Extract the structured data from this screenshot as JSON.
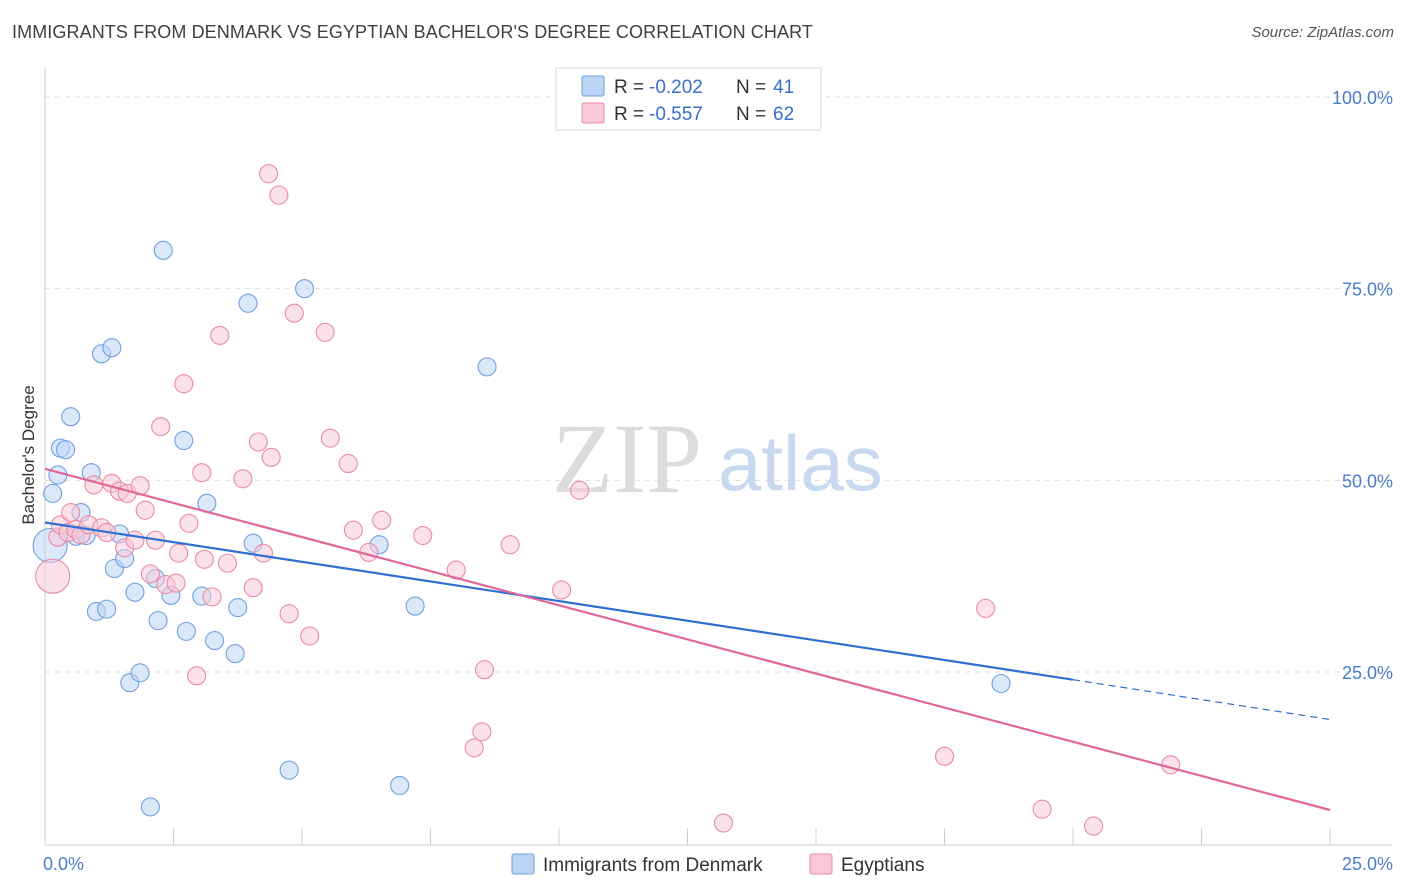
{
  "header": {
    "title": "IMMIGRANTS FROM DENMARK VS EGYPTIAN BACHELOR'S DEGREE CORRELATION CHART",
    "source": "Source: ZipAtlas.com"
  },
  "watermark": {
    "part1": "ZIP",
    "part2": "atlas"
  },
  "legend": {
    "r_label": "R =",
    "n_label": "N =",
    "entries": [
      {
        "r": "-0.202",
        "n": "41",
        "color": "#a9c8f0"
      },
      {
        "r": "-0.557",
        "n": "62",
        "color": "#f4b8cb"
      }
    ]
  },
  "chart_data": {
    "type": "scatter",
    "title": "IMMIGRANTS FROM DENMARK VS EGYPTIAN BACHELOR'S DEGREE CORRELATION CHART",
    "xlabel": "",
    "ylabel": "Bachelor's Degree",
    "xlim": [
      0,
      25
    ],
    "ylim": [
      0,
      100
    ],
    "x_tick_labels": [
      "0.0%",
      "25.0%"
    ],
    "y_tick_labels": [
      "25.0%",
      "50.0%",
      "75.0%",
      "100.0%"
    ],
    "y_ticks": [
      25,
      50,
      75,
      100
    ],
    "grid": true,
    "legend_position": "top-center",
    "series": [
      {
        "name": "Immigrants from Denmark",
        "color": "#6fa0e0",
        "fill": "#bcd5f5",
        "trend_color": "#2f6fd0",
        "trend": {
          "x_start": 0,
          "y_start": 44.5,
          "x_solid_end": 20,
          "y_solid_end": 24,
          "x_end": 25,
          "y_end": 18.8
        },
        "points": [
          [
            0.1,
            41.5
          ],
          [
            0.15,
            48.3
          ],
          [
            0.25,
            50.7
          ],
          [
            0.3,
            54.2
          ],
          [
            0.4,
            54
          ],
          [
            0.5,
            58.3
          ],
          [
            0.6,
            42.7
          ],
          [
            0.7,
            45.8
          ],
          [
            0.8,
            42.8
          ],
          [
            0.9,
            51
          ],
          [
            1.0,
            32.9
          ],
          [
            1.1,
            66.5
          ],
          [
            1.2,
            33.2
          ],
          [
            1.3,
            67.3
          ],
          [
            1.35,
            38.5
          ],
          [
            1.45,
            43
          ],
          [
            1.55,
            39.8
          ],
          [
            1.65,
            23.6
          ],
          [
            1.75,
            35.4
          ],
          [
            1.85,
            24.9
          ],
          [
            2.05,
            7.4
          ],
          [
            2.15,
            37.2
          ],
          [
            2.2,
            31.7
          ],
          [
            2.3,
            80
          ],
          [
            2.45,
            35
          ],
          [
            2.7,
            55.2
          ],
          [
            2.75,
            30.3
          ],
          [
            3.05,
            34.9
          ],
          [
            3.15,
            47
          ],
          [
            3.3,
            29.1
          ],
          [
            3.7,
            27.4
          ],
          [
            3.75,
            33.4
          ],
          [
            3.95,
            73.1
          ],
          [
            4.05,
            41.8
          ],
          [
            4.75,
            12.2
          ],
          [
            5.05,
            75
          ],
          [
            6.5,
            41.6
          ],
          [
            6.9,
            10.2
          ],
          [
            7.2,
            33.6
          ],
          [
            8.6,
            64.8
          ],
          [
            18.6,
            23.5
          ]
        ]
      },
      {
        "name": "Egyptians",
        "color": "#ea8aa8",
        "fill": "#f8c9d7",
        "trend_color": "#e0679a",
        "trend": {
          "x_start": 0,
          "y_start": 51.5,
          "x_end": 25,
          "y_end": 7
        },
        "points": [
          [
            0.15,
            37.5
          ],
          [
            0.25,
            42.6
          ],
          [
            0.3,
            44.2
          ],
          [
            0.45,
            43.2
          ],
          [
            0.5,
            45.8
          ],
          [
            0.6,
            43.6
          ],
          [
            0.7,
            42.9
          ],
          [
            0.85,
            44.2
          ],
          [
            0.95,
            49.4
          ],
          [
            1.1,
            43.8
          ],
          [
            1.2,
            43.2
          ],
          [
            1.3,
            49.6
          ],
          [
            1.45,
            48.6
          ],
          [
            1.55,
            41.2
          ],
          [
            1.6,
            48.3
          ],
          [
            1.75,
            42.2
          ],
          [
            1.85,
            49.3
          ],
          [
            1.95,
            46.1
          ],
          [
            2.05,
            37.8
          ],
          [
            2.15,
            42.2
          ],
          [
            2.25,
            57
          ],
          [
            2.35,
            36.4
          ],
          [
            2.55,
            36.6
          ],
          [
            2.6,
            40.5
          ],
          [
            2.7,
            62.6
          ],
          [
            2.8,
            44.4
          ],
          [
            2.95,
            24.5
          ],
          [
            3.05,
            51
          ],
          [
            3.1,
            39.7
          ],
          [
            3.25,
            34.8
          ],
          [
            3.4,
            68.9
          ],
          [
            3.55,
            39.2
          ],
          [
            3.85,
            50.2
          ],
          [
            4.05,
            36
          ],
          [
            4.15,
            55
          ],
          [
            4.25,
            40.5
          ],
          [
            4.35,
            90
          ],
          [
            4.4,
            53
          ],
          [
            4.55,
            87.2
          ],
          [
            4.75,
            32.6
          ],
          [
            4.85,
            71.8
          ],
          [
            5.15,
            29.7
          ],
          [
            5.45,
            69.3
          ],
          [
            5.55,
            55.5
          ],
          [
            5.9,
            52.2
          ],
          [
            6.0,
            43.5
          ],
          [
            6.3,
            40.6
          ],
          [
            6.55,
            44.8
          ],
          [
            7.35,
            42.8
          ],
          [
            8.0,
            38.3
          ],
          [
            8.35,
            15.1
          ],
          [
            8.5,
            17.2
          ],
          [
            8.55,
            25.3
          ],
          [
            9.05,
            41.6
          ],
          [
            10.05,
            35.7
          ],
          [
            10.4,
            48.7
          ],
          [
            13.2,
            5.3
          ],
          [
            17.5,
            14
          ],
          [
            18.3,
            33.3
          ],
          [
            19.4,
            7.1
          ],
          [
            20.4,
            4.9
          ],
          [
            21.9,
            12.9
          ]
        ]
      }
    ]
  },
  "bottom_legend": {
    "items": [
      {
        "label": "Immigrants from Denmark",
        "color": "#bcd5f5",
        "stroke": "#6fa0e0"
      },
      {
        "label": "Egyptians",
        "color": "#f8c9d7",
        "stroke": "#ea8aa8"
      }
    ]
  }
}
